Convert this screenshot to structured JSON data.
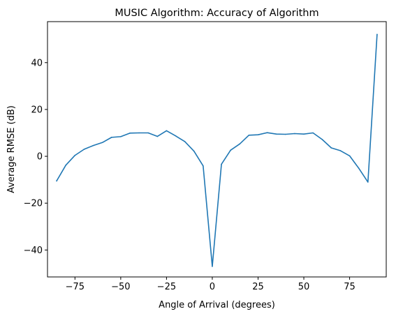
{
  "chart_data": {
    "type": "line",
    "title": "MUSIC Algorithm: Accuracy of Algorithm",
    "xlabel": "Angle of Arrival (degrees)",
    "ylabel": "Average RMSE (dB)",
    "xlim": [
      -90,
      95
    ],
    "ylim": [
      -51.5,
      57.5
    ],
    "xticks": [
      -75,
      -50,
      -25,
      0,
      25,
      50,
      75
    ],
    "yticks": [
      -40,
      -20,
      0,
      20,
      40
    ],
    "xtick_labels": [
      "−75",
      "−50",
      "−25",
      "0",
      "25",
      "50",
      "75"
    ],
    "ytick_labels": [
      "−40",
      "−20",
      "0",
      "20",
      "40"
    ],
    "grid": false,
    "legend": "none",
    "series": [
      {
        "color": "#1f77b4",
        "x": [
          -85,
          -80,
          -75,
          -70,
          -65,
          -60,
          -55,
          -50,
          -45,
          -40,
          -35,
          -30,
          -25,
          -20,
          -15,
          -10,
          -5,
          0,
          5,
          10,
          15,
          20,
          25,
          30,
          35,
          40,
          45,
          50,
          55,
          60,
          65,
          70,
          75,
          80,
          85,
          90
        ],
        "y": [
          -10.5,
          -3.8,
          0.4,
          3.0,
          4.6,
          5.9,
          8.1,
          8.4,
          9.9,
          10.0,
          10.0,
          8.5,
          10.9,
          8.7,
          6.3,
          2.2,
          -4.1,
          -47.0,
          -3.4,
          2.6,
          5.3,
          9.0,
          9.2,
          10.1,
          9.5,
          9.4,
          9.7,
          9.5,
          10.0,
          7.2,
          3.6,
          2.4,
          0.2,
          -5.1,
          -11.0,
          52.0
        ]
      }
    ]
  }
}
